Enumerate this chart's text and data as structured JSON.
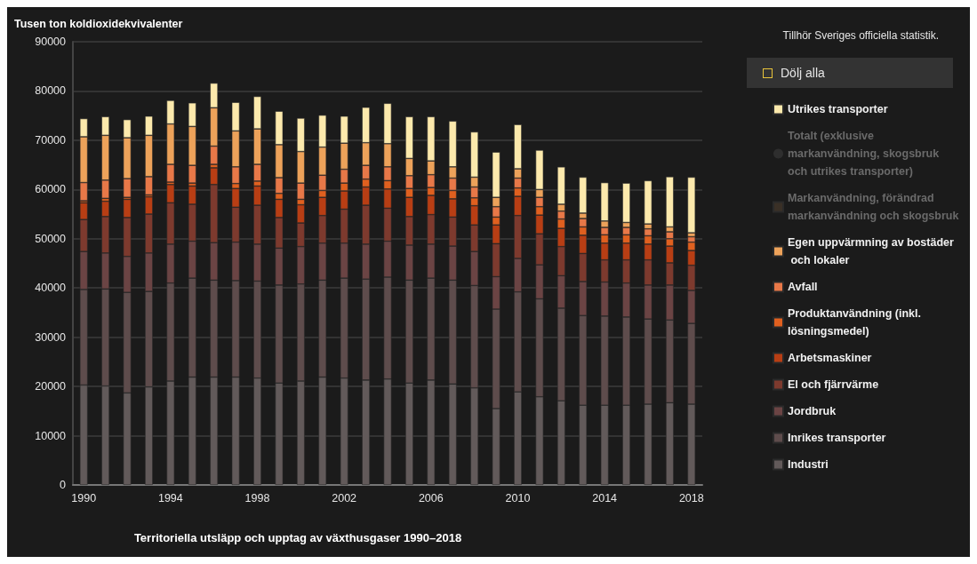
{
  "chart_data": {
    "type": "bar",
    "stacked": true,
    "title": "Territoriella utsläpp och upptag av växthusgaser 1990–2018",
    "ylabel": "Tusen ton koldioxidekvivalenter",
    "annotations": [
      "Tillhör Sveriges officiella statistik.",
      "Dölj alla"
    ],
    "categories": [
      "1990",
      null,
      null,
      null,
      "1994",
      null,
      null,
      null,
      "1998",
      null,
      null,
      null,
      "2002",
      null,
      null,
      null,
      "2006",
      null,
      null,
      null,
      "2010",
      null,
      null,
      null,
      "2014",
      null,
      null,
      null,
      "2018"
    ],
    "ylim": [
      0,
      90000
    ],
    "yticks": [
      0,
      10000,
      20000,
      30000,
      40000,
      50000,
      60000,
      70000,
      80000,
      90000
    ],
    "grid": "y",
    "legend": "right",
    "series": [
      {
        "name": "Industri",
        "color": "#625a5a",
        "values": [
          20300,
          20100,
          18700,
          19900,
          21100,
          21900,
          21900,
          21900,
          21700,
          20700,
          21100,
          21900,
          21700,
          21300,
          21500,
          20700,
          21300,
          20500,
          19700,
          15500,
          18900,
          17900,
          17100,
          16200,
          16200,
          16200,
          16400,
          16700,
          16400
        ]
      },
      {
        "name": "Inrikes transporter",
        "color": "#5e4c4c",
        "values": [
          19400,
          19700,
          20400,
          19400,
          19900,
          20100,
          19700,
          19600,
          19700,
          19900,
          19700,
          19700,
          20300,
          20500,
          20700,
          20900,
          20700,
          21100,
          20800,
          20200,
          20300,
          19900,
          18800,
          18200,
          18100,
          17900,
          17300,
          16800,
          16400
        ]
      },
      {
        "name": "Jordbruk",
        "color": "#6b4444",
        "values": [
          7700,
          7300,
          7300,
          7800,
          7900,
          7500,
          7600,
          7800,
          7500,
          7500,
          7600,
          7500,
          7100,
          7100,
          7300,
          7100,
          6900,
          6900,
          6900,
          6600,
          6800,
          6900,
          6600,
          6900,
          6900,
          6900,
          6900,
          7100,
          6700
        ]
      },
      {
        "name": "El och fjärrvärme",
        "color": "#7d3a2e",
        "values": [
          6500,
          7400,
          7900,
          7900,
          8400,
          7500,
          11800,
          7100,
          7900,
          6200,
          4800,
          5600,
          6900,
          7900,
          6700,
          5800,
          6000,
          5900,
          5400,
          6700,
          8700,
          6300,
          5900,
          5700,
          4500,
          4700,
          5100,
          4500,
          5100
        ]
      },
      {
        "name": "Arbetsmaskiner",
        "color": "#b83e14",
        "values": [
          3400,
          3100,
          3700,
          3500,
          3700,
          3700,
          3400,
          3800,
          3900,
          3700,
          3700,
          3700,
          3700,
          3700,
          3900,
          3900,
          3900,
          3700,
          3900,
          3800,
          3900,
          3800,
          3700,
          3700,
          3400,
          3400,
          3200,
          3400,
          3000
        ]
      },
      {
        "name": "Produktanvändning (inkl. lösningsmedel)",
        "color": "#e0601f",
        "values": [
          400,
          600,
          400,
          400,
          500,
          600,
          700,
          1000,
          1000,
          1200,
          1100,
          1400,
          1600,
          1600,
          1700,
          1800,
          1600,
          1700,
          1600,
          1600,
          1700,
          1700,
          1900,
          1700,
          1700,
          1700,
          1700,
          1500,
          1700
        ]
      },
      {
        "name": "Avfall",
        "color": "#e87848",
        "values": [
          3700,
          3700,
          3800,
          3700,
          3600,
          3600,
          3700,
          3400,
          3400,
          3200,
          3300,
          3100,
          2800,
          2800,
          2800,
          2600,
          2600,
          2500,
          2200,
          2100,
          2000,
          1900,
          1600,
          1700,
          1500,
          1500,
          1400,
          1400,
          1100
        ]
      },
      {
        "name": "Egen uppvärmning av bostäder och lokaler",
        "color": "#eda25a",
        "values": [
          9300,
          9100,
          8300,
          8400,
          8200,
          7900,
          7800,
          7300,
          7200,
          6700,
          6400,
          5700,
          5300,
          4600,
          4700,
          3500,
          2800,
          2300,
          2000,
          1900,
          1900,
          1600,
          1400,
          1100,
          1300,
          1000,
          1000,
          1000,
          800
        ]
      },
      {
        "name": "Markanvändning, förändrad markanvändning och skogsbruk",
        "color": "#3a3026",
        "values": [
          null,
          null,
          null,
          null,
          null,
          null,
          null,
          null,
          null,
          null,
          null,
          null,
          null,
          null,
          null,
          null,
          null,
          null,
          null,
          null,
          null,
          null,
          null,
          null,
          null,
          null,
          null,
          null,
          null
        ]
      },
      {
        "name": "Totalt (exklusive markanvändning, skogsbruk och utrikes transporter)",
        "type": "line",
        "color": "#2e2e2e",
        "values": [
          null,
          null,
          null,
          null,
          null,
          null,
          null,
          null,
          null,
          null,
          null,
          null,
          null,
          null,
          null,
          null,
          null,
          null,
          null,
          null,
          null,
          null,
          null,
          null,
          null,
          null,
          null,
          null,
          null
        ]
      },
      {
        "name": "Utrikes transporter",
        "color": "#fce9ac",
        "values": [
          3700,
          3800,
          3700,
          3900,
          4800,
          4800,
          5000,
          5800,
          6600,
          6800,
          6800,
          6500,
          5500,
          7200,
          8200,
          8500,
          9000,
          9300,
          9200,
          9200,
          9000,
          8000,
          7600,
          7300,
          7800,
          8000,
          8800,
          10200,
          11300
        ]
      }
    ]
  }
}
